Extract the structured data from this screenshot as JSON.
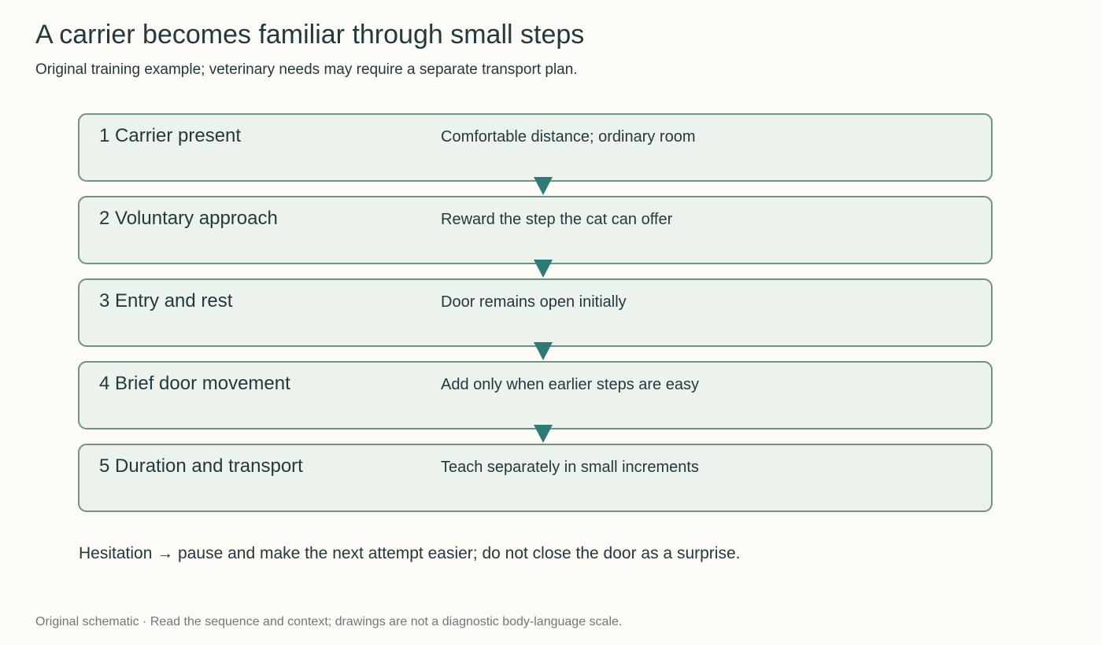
{
  "header": {
    "title": "A carrier becomes familiar through small steps",
    "subtitle": "Original training example; veterinary needs may require a separate transport plan."
  },
  "steps": [
    {
      "label": "1 Carrier present",
      "note": "Comfortable distance; ordinary room"
    },
    {
      "label": "2 Voluntary approach",
      "note": "Reward the step the cat can offer"
    },
    {
      "label": "3 Entry and rest",
      "note": "Door remains open initially"
    },
    {
      "label": "4 Brief door movement",
      "note": "Add only when earlier steps are easy"
    },
    {
      "label": "5 Duration and transport",
      "note": "Teach separately in small increments"
    }
  ],
  "note": "Hesitation → pause and make the next attempt easier; do not close the door as a surprise.",
  "footer": "Original schematic · Read the sequence and context; drawings are not a diagnostic body-language scale."
}
